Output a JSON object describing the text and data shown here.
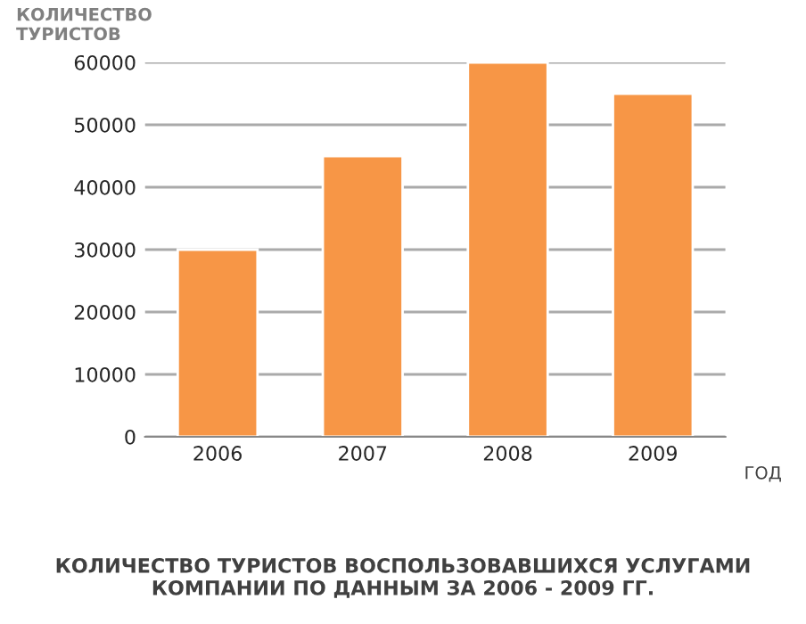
{
  "chart_data": {
    "type": "bar",
    "title": "КОЛИЧЕСТВО ТУРИСТОВ ВОСПОЛЬЗОВАВШИХСЯ УСЛУГАМИ КОМПАНИИ ПО ДАННЫМ ЗА 2006 - 2009 ГГ.",
    "xlabel": "ГОД",
    "ylabel": "КОЛИЧЕСТВО\nТУРИСТОВ",
    "categories": [
      "2006",
      "2007",
      "2008",
      "2009"
    ],
    "values": [
      30000,
      45000,
      60000,
      55000
    ],
    "color": "#f79646",
    "ylim": [
      0,
      60000
    ],
    "yticks": [
      0,
      10000,
      20000,
      30000,
      40000,
      50000,
      60000
    ],
    "grid": "y",
    "legend": false
  }
}
